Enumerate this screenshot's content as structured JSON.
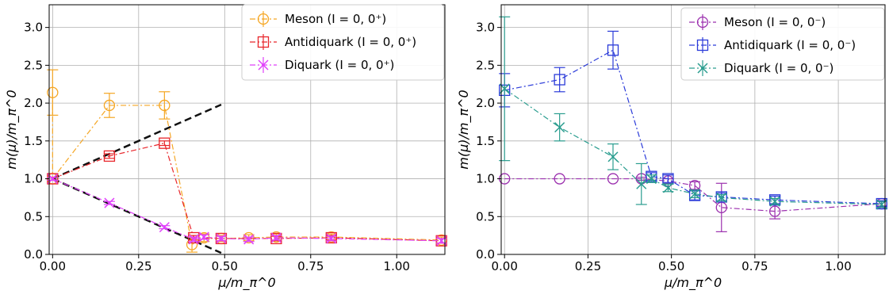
{
  "chart_data": [
    {
      "type": "line",
      "title": "",
      "xlabel": "μ/m_π^0",
      "ylabel": "m(μ)/m_π^0",
      "xlim": [
        -0.01,
        1.14
      ],
      "ylim": [
        0,
        3.3
      ],
      "xticks": [
        0.0,
        0.25,
        0.5,
        0.75,
        1.0
      ],
      "xtick_labels": [
        "0.00",
        "0.25",
        "0.50",
        "0.75",
        "1.00"
      ],
      "yticks": [
        0.0,
        0.5,
        1.0,
        1.5,
        2.0,
        2.5,
        3.0
      ],
      "ytick_labels": [
        "0.0",
        "0.5",
        "1.0",
        "1.5",
        "2.0",
        "2.5",
        "3.0"
      ],
      "grid": true,
      "legend_position": "top-right",
      "series": [
        {
          "name": "Meson (I = 0, 0⁺)",
          "color": "#f5a623",
          "marker": "circle",
          "points": [
            {
              "x": 0.0,
              "y": 2.14,
              "err": 0.3
            },
            {
              "x": 0.0,
              "y": 1.0,
              "err": 0.02
            },
            {
              "x": 0.165,
              "y": 1.97,
              "err": 0.16
            },
            {
              "x": 0.325,
              "y": 1.97,
              "err": 0.18
            },
            {
              "x": 0.405,
              "y": 0.13,
              "err": 0.1
            },
            {
              "x": 0.44,
              "y": 0.22,
              "err": 0.05
            },
            {
              "x": 0.49,
              "y": 0.21,
              "err": 0.04
            },
            {
              "x": 0.57,
              "y": 0.22,
              "err": 0.04
            },
            {
              "x": 0.65,
              "y": 0.23,
              "err": 0.04
            },
            {
              "x": 0.81,
              "y": 0.23,
              "err": 0.04
            },
            {
              "x": 1.13,
              "y": 0.19,
              "err": 0.04
            }
          ]
        },
        {
          "name": "Antidiquark (I = 0, 0⁺)",
          "color": "#e8262b",
          "marker": "square",
          "points": [
            {
              "x": 0.0,
              "y": 1.0,
              "err": 0.02
            },
            {
              "x": 0.165,
              "y": 1.3,
              "err": 0.03
            },
            {
              "x": 0.325,
              "y": 1.47,
              "err": 0.03
            },
            {
              "x": 0.41,
              "y": 0.22,
              "err": 0.03
            },
            {
              "x": 0.49,
              "y": 0.21,
              "err": 0.03
            },
            {
              "x": 0.65,
              "y": 0.21,
              "err": 0.03
            },
            {
              "x": 0.81,
              "y": 0.22,
              "err": 0.03
            },
            {
              "x": 1.13,
              "y": 0.18,
              "err": 0.03
            }
          ]
        },
        {
          "name": "Diquark (I = 0, 0⁺)",
          "color": "#e040fb",
          "marker": "x",
          "points": [
            {
              "x": 0.0,
              "y": 1.0,
              "err": 0.02
            },
            {
              "x": 0.165,
              "y": 0.68,
              "err": 0.02
            },
            {
              "x": 0.325,
              "y": 0.36,
              "err": 0.02
            },
            {
              "x": 0.41,
              "y": 0.2,
              "err": 0.03
            },
            {
              "x": 0.44,
              "y": 0.23,
              "err": 0.03
            },
            {
              "x": 0.49,
              "y": 0.21,
              "err": 0.03
            },
            {
              "x": 0.57,
              "y": 0.2,
              "err": 0.03
            },
            {
              "x": 0.65,
              "y": 0.22,
              "err": 0.03
            },
            {
              "x": 0.81,
              "y": 0.21,
              "err": 0.03
            },
            {
              "x": 1.13,
              "y": 0.18,
              "err": 0.03
            }
          ]
        }
      ],
      "reference_lines": [
        {
          "color": "#111111",
          "points": [
            [
              0.0,
              1.0
            ],
            [
              0.49,
              1.98
            ]
          ]
        },
        {
          "color": "#111111",
          "points": [
            [
              0.0,
              1.0
            ],
            [
              0.49,
              0.02
            ]
          ]
        }
      ]
    },
    {
      "type": "line",
      "title": "",
      "xlabel": "μ/m_π^0",
      "ylabel": "m(μ)/m_π^0",
      "xlim": [
        -0.01,
        1.14
      ],
      "ylim": [
        0,
        3.3
      ],
      "xticks": [
        0.0,
        0.25,
        0.5,
        0.75,
        1.0
      ],
      "xtick_labels": [
        "0.00",
        "0.25",
        "0.50",
        "0.75",
        "1.00"
      ],
      "yticks": [
        0.0,
        0.5,
        1.0,
        1.5,
        2.0,
        2.5,
        3.0
      ],
      "ytick_labels": [
        "0.0",
        "0.5",
        "1.0",
        "1.5",
        "2.0",
        "2.5",
        "3.0"
      ],
      "grid": true,
      "legend_position": "top-right",
      "series": [
        {
          "name": "Meson (I = 0, 0⁻)",
          "color": "#9b2fae",
          "marker": "circle",
          "points": [
            {
              "x": 0.0,
              "y": 1.0,
              "err": 0.0
            },
            {
              "x": 0.165,
              "y": 1.0,
              "err": 0.0
            },
            {
              "x": 0.325,
              "y": 1.0,
              "err": 0.0
            },
            {
              "x": 0.41,
              "y": 1.0,
              "err": 0.02
            },
            {
              "x": 0.49,
              "y": 0.97,
              "err": 0.03
            },
            {
              "x": 0.57,
              "y": 0.91,
              "err": 0.05
            },
            {
              "x": 0.65,
              "y": 0.62,
              "err": 0.32
            },
            {
              "x": 0.81,
              "y": 0.57,
              "err": 0.1
            },
            {
              "x": 1.13,
              "y": 0.67,
              "err": 0.03
            }
          ]
        },
        {
          "name": "Antidiquark (I = 0, 0⁻)",
          "color": "#2b3bd9",
          "marker": "square",
          "points": [
            {
              "x": 0.0,
              "y": 2.17,
              "err": 0.22
            },
            {
              "x": 0.165,
              "y": 2.31,
              "err": 0.16
            },
            {
              "x": 0.325,
              "y": 2.7,
              "err": 0.25
            },
            {
              "x": 0.44,
              "y": 1.03,
              "err": 0.05
            },
            {
              "x": 0.49,
              "y": 1.0,
              "err": 0.05
            },
            {
              "x": 0.57,
              "y": 0.78,
              "err": 0.06
            },
            {
              "x": 0.65,
              "y": 0.76,
              "err": 0.05
            },
            {
              "x": 0.81,
              "y": 0.72,
              "err": 0.05
            },
            {
              "x": 1.13,
              "y": 0.67,
              "err": 0.04
            }
          ]
        },
        {
          "name": "Diquark (I = 0, 0⁻)",
          "color": "#2a9d8f",
          "marker": "x",
          "points": [
            {
              "x": 0.0,
              "y": 2.19,
              "err": 0.95
            },
            {
              "x": 0.165,
              "y": 1.68,
              "err": 0.18
            },
            {
              "x": 0.325,
              "y": 1.29,
              "err": 0.17
            },
            {
              "x": 0.41,
              "y": 0.93,
              "err": 0.27
            },
            {
              "x": 0.44,
              "y": 1.0,
              "err": 0.05
            },
            {
              "x": 0.49,
              "y": 0.88,
              "err": 0.05
            },
            {
              "x": 0.57,
              "y": 0.8,
              "err": 0.05
            },
            {
              "x": 0.65,
              "y": 0.75,
              "err": 0.04
            },
            {
              "x": 0.81,
              "y": 0.7,
              "err": 0.04
            },
            {
              "x": 1.13,
              "y": 0.66,
              "err": 0.04
            }
          ]
        }
      ],
      "reference_lines": []
    }
  ]
}
